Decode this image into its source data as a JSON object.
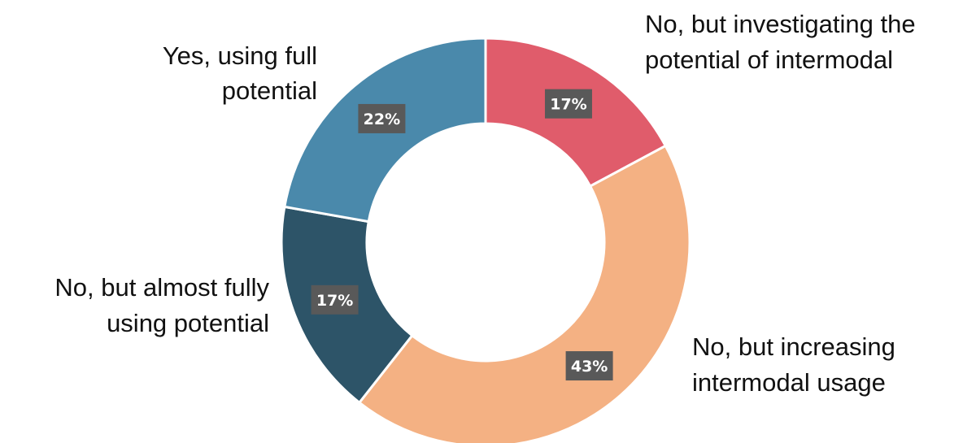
{
  "chart_data": {
    "type": "pie",
    "donut": true,
    "categories": [
      "No, but investigating the potential of intermodal",
      "No, but increasing intermodal usage",
      "No, but almost fully using potential",
      "Yes, using full potential"
    ],
    "values": [
      17,
      43,
      17,
      22
    ],
    "value_labels": [
      "17%",
      "43%",
      "17%",
      "22%"
    ],
    "label_lines": [
      [
        "No, but investigating the",
        "potential of intermodal"
      ],
      [
        "No, but increasing",
        "intermodal usage"
      ],
      [
        "No, but almost fully",
        "using potential"
      ],
      [
        "Yes, using full",
        "potential"
      ]
    ],
    "colors": [
      "#E05C6B",
      "#F4B183",
      "#2D5468",
      "#4A89AB"
    ],
    "start_angle_deg": 0,
    "direction": "clockwise",
    "legend": "none"
  }
}
